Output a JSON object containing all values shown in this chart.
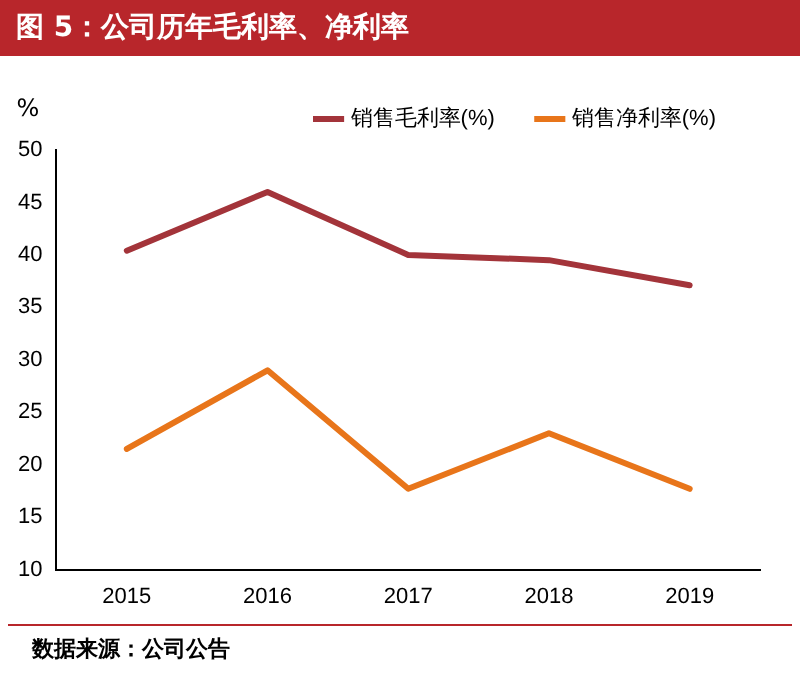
{
  "chart_data": {
    "type": "line",
    "title": "图 5：公司历年毛利率、净利率",
    "ylabel": "%",
    "categories": [
      "2015",
      "2016",
      "2017",
      "2018",
      "2019"
    ],
    "series": [
      {
        "name": "销售毛利率(%)",
        "color": "#a3343a",
        "values": [
          40.4,
          46.0,
          40.0,
          39.5,
          37.1
        ]
      },
      {
        "name": "销售净利率(%)",
        "color": "#e8751a",
        "values": [
          21.5,
          29.0,
          17.7,
          23.0,
          17.7
        ]
      }
    ],
    "ylim": [
      10,
      50
    ],
    "yticks": [
      10,
      15,
      20,
      25,
      30,
      35,
      40,
      45,
      50
    ],
    "grid": false,
    "legend": "top",
    "marker": "none",
    "line_style": "solid",
    "annotations": [
      "数据来源：公司公告"
    ]
  }
}
